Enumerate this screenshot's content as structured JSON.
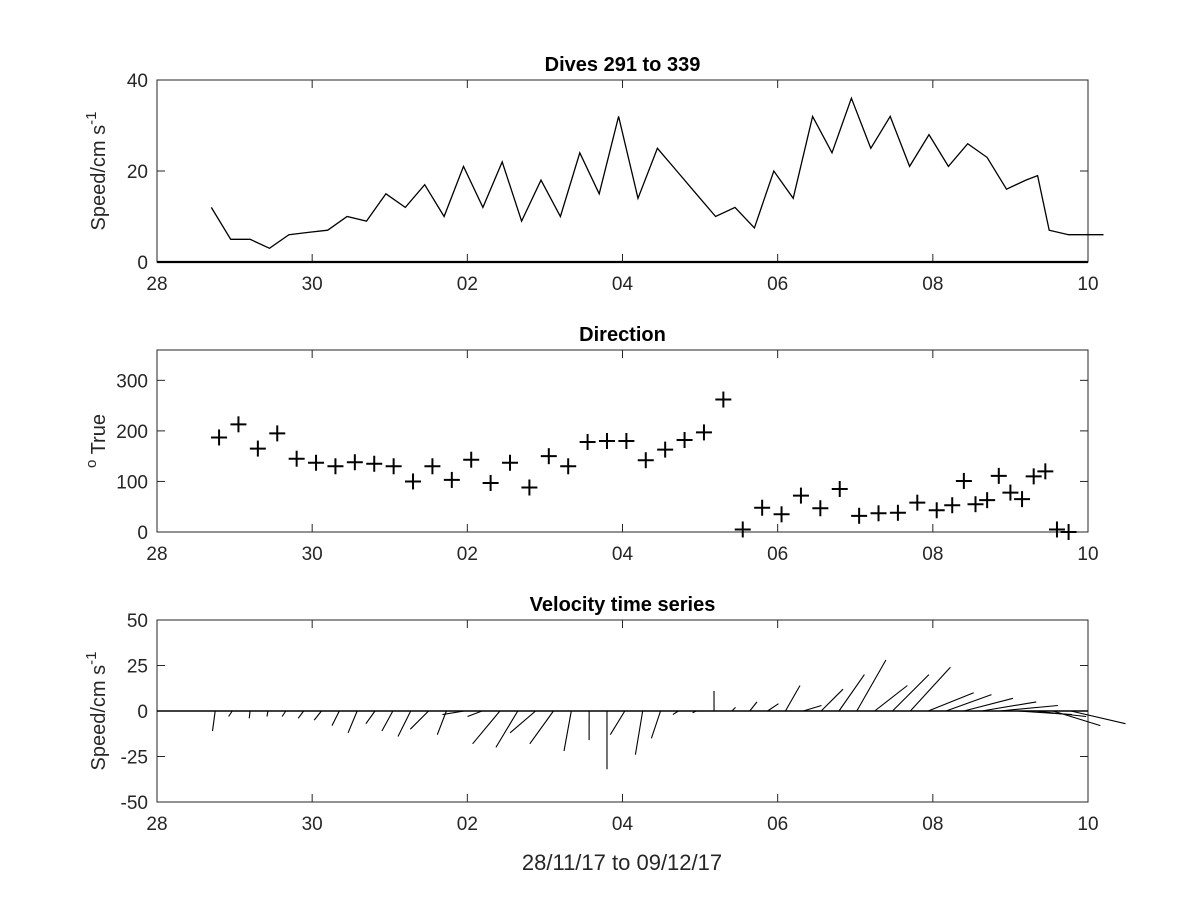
{
  "figure_xlabel": "28/11/17 to 09/12/17",
  "x_tick_labels": [
    "28",
    "30",
    "02",
    "04",
    "06",
    "08",
    "10"
  ],
  "chart_data": [
    {
      "type": "line",
      "title": "Dives 291 to 339",
      "ylabel_main": "Speed/cm s",
      "ylabel_sup": "-1",
      "xlim": [
        0,
        12
      ],
      "ylim": [
        0,
        40
      ],
      "yticks": [
        0,
        20,
        40
      ],
      "x": [
        0.7,
        0.95,
        1.2,
        1.45,
        1.7,
        1.95,
        2.2,
        2.45,
        2.7,
        2.95,
        3.2,
        3.45,
        3.7,
        3.95,
        4.2,
        4.45,
        4.7,
        4.95,
        5.2,
        5.45,
        5.7,
        5.95,
        6.2,
        6.45,
        6.7,
        6.95,
        7.2,
        7.45,
        7.7,
        7.95,
        8.2,
        8.45,
        8.7,
        8.95,
        9.2,
        9.45,
        9.7,
        9.95,
        10.2,
        10.45,
        10.7,
        10.95,
        11.2,
        11.35,
        11.5,
        11.75,
        11.9,
        12.05,
        12.2
      ],
      "values": [
        12,
        5,
        5,
        3,
        6,
        6.5,
        7,
        10,
        9,
        15,
        12,
        17,
        10,
        21,
        12,
        22,
        9,
        18,
        10,
        24,
        15,
        32,
        14,
        25,
        20,
        15,
        10,
        12,
        7.5,
        20,
        14,
        32,
        24,
        36,
        25,
        32,
        21,
        28,
        21,
        26,
        23,
        16,
        18,
        19,
        7,
        6,
        6,
        6,
        6
      ],
      "series_color": "#000000"
    },
    {
      "type": "scatter",
      "title": "Direction",
      "ylabel_main": "True",
      "ylabel_sup": "o",
      "xlim": [
        0,
        12
      ],
      "ylim": [
        0,
        360
      ],
      "yticks": [
        0,
        100,
        200,
        300
      ],
      "x": [
        0.8,
        1.05,
        1.3,
        1.55,
        1.8,
        2.05,
        2.3,
        2.55,
        2.8,
        3.05,
        3.3,
        3.55,
        3.8,
        4.05,
        4.3,
        4.55,
        4.8,
        5.05,
        5.3,
        5.55,
        5.8,
        6.05,
        6.3,
        6.55,
        6.8,
        7.05,
        7.3,
        7.55,
        7.8,
        8.05,
        8.3,
        8.55,
        8.8,
        9.05,
        9.3,
        9.55,
        9.8,
        10.05,
        10.25,
        10.4,
        10.55,
        10.7,
        10.85,
        11.0,
        11.15,
        11.3,
        11.45,
        11.6,
        11.75
      ],
      "values": [
        187,
        213,
        165,
        195,
        145,
        137,
        130,
        138,
        135,
        130,
        100,
        130,
        103,
        143,
        97,
        137,
        88,
        150,
        130,
        178,
        180,
        180,
        142,
        163,
        182,
        197,
        262,
        5,
        48,
        35,
        72,
        47,
        85,
        32,
        37,
        38,
        58,
        43,
        53,
        101,
        55,
        63,
        111,
        78,
        65,
        110,
        120,
        5,
        0
      ],
      "marker": "+",
      "series_color": "#000000"
    },
    {
      "type": "quiver",
      "title": "Velocity time series",
      "ylabel_main": "Speed/cm s",
      "ylabel_sup": "-1",
      "xlim": [
        0,
        12
      ],
      "ylim": [
        -50,
        50
      ],
      "yticks": [
        50,
        25,
        0,
        -25,
        -50
      ],
      "ytick_labels": [
        "50",
        "25",
        "0",
        "-25",
        "-50"
      ],
      "x": [
        0.75,
        0.97,
        1.2,
        1.43,
        1.66,
        1.89,
        2.12,
        2.35,
        2.58,
        2.81,
        3.04,
        3.27,
        3.5,
        3.73,
        3.96,
        4.19,
        4.42,
        4.65,
        4.88,
        5.11,
        5.34,
        5.57,
        5.8,
        6.03,
        6.26,
        6.49,
        6.72,
        6.95,
        7.18,
        7.41,
        7.64,
        7.87,
        8.1,
        8.33,
        8.56,
        8.79,
        9.02,
        9.25,
        9.48,
        9.71,
        9.94,
        10.17,
        10.4,
        10.63,
        10.86,
        11.09,
        11.32,
        11.55,
        11.78
      ],
      "u": [
        -1.5,
        -2,
        -0.5,
        -0.5,
        -2,
        -3,
        -4,
        -4,
        -5,
        -5,
        -6,
        -7,
        -10,
        -5,
        -12,
        -8,
        -15,
        -12,
        -14,
        -13,
        -4,
        0,
        0,
        -8,
        -4,
        -5,
        -3,
        -2,
        0,
        2,
        4,
        6,
        8,
        10,
        12,
        14,
        16,
        18,
        20,
        22,
        25,
        25,
        27,
        30,
        32,
        30,
        28,
        26,
        30
      ],
      "v": [
        -11,
        -3,
        -4,
        -3,
        -3,
        -4,
        -5,
        -8,
        -12,
        -7,
        -11,
        -14,
        -10,
        -13,
        -2,
        -3,
        -18,
        -20,
        -12,
        -18,
        -22,
        -16,
        -32,
        -13,
        -24,
        -15,
        -2,
        -1,
        11,
        2,
        5,
        4,
        14,
        3,
        12,
        20,
        28,
        14,
        20,
        24,
        10,
        9,
        7,
        5,
        3,
        -2,
        -3,
        -8,
        -7
      ],
      "series_color": "#000000"
    }
  ]
}
